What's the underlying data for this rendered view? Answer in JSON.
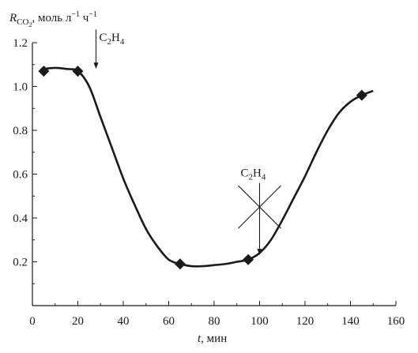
{
  "chart_data": {
    "type": "line",
    "ylabel": {
      "symbol": "R",
      "subscript": "CO",
      "subsubscript": "2",
      "unit_parts": [
        {
          "text": ", моль л",
          "sup": false
        },
        {
          "text": "−1",
          "sup": true
        },
        {
          "text": " ч",
          "sup": false
        },
        {
          "text": "−1",
          "sup": true
        }
      ]
    },
    "xlabel": {
      "symbol": "t",
      "unit": ", мин"
    },
    "xlim": [
      0,
      160
    ],
    "ylim": [
      0,
      1.2
    ],
    "x_ticks": [
      0,
      20,
      40,
      60,
      80,
      100,
      120,
      140,
      160
    ],
    "x_tick_labels": [
      "0",
      "20",
      "40",
      "60",
      "80",
      "100",
      "120",
      "140",
      "160"
    ],
    "y_ticks": [
      0.2,
      0.4,
      0.6,
      0.8,
      1.0,
      1.2
    ],
    "y_tick_labels": [
      "0.2",
      "0.4",
      "0.6",
      "0.8",
      "1.0",
      "1.2"
    ],
    "grid": false,
    "curve": {
      "x": [
        5,
        10,
        15,
        20,
        25,
        30,
        35,
        40,
        45,
        50,
        55,
        60,
        65,
        70,
        75,
        80,
        85,
        90,
        95,
        100,
        105,
        110,
        115,
        120,
        125,
        130,
        135,
        140,
        145,
        150
      ],
      "y": [
        1.08,
        1.085,
        1.08,
        1.07,
        1.0,
        0.86,
        0.72,
        0.58,
        0.46,
        0.35,
        0.27,
        0.21,
        0.19,
        0.18,
        0.18,
        0.185,
        0.19,
        0.2,
        0.21,
        0.24,
        0.3,
        0.39,
        0.49,
        0.59,
        0.7,
        0.8,
        0.88,
        0.93,
        0.96,
        0.98
      ]
    },
    "markers": {
      "shape": "diamond",
      "points": [
        {
          "x": 5,
          "y": 1.07
        },
        {
          "x": 20,
          "y": 1.07
        },
        {
          "x": 65,
          "y": 0.19
        },
        {
          "x": 95,
          "y": 0.21
        },
        {
          "x": 145,
          "y": 0.96
        }
      ]
    },
    "annotations": [
      {
        "base": "C",
        "sub1": "2",
        "mid": "H",
        "sub2": "4",
        "arrow_x": 28,
        "arrow_from_y": 1.26,
        "arrow_to_y": 1.08,
        "crossed": false
      },
      {
        "base": "C",
        "sub1": "2",
        "mid": "H",
        "sub2": "4",
        "arrow_x": 100,
        "arrow_from_y": 0.56,
        "arrow_to_y": 0.23,
        "crossed": true
      }
    ],
    "colors": {
      "line": "#1a1a1a",
      "axis": "#1a1a1a",
      "marker": "#1a1a1a"
    }
  }
}
